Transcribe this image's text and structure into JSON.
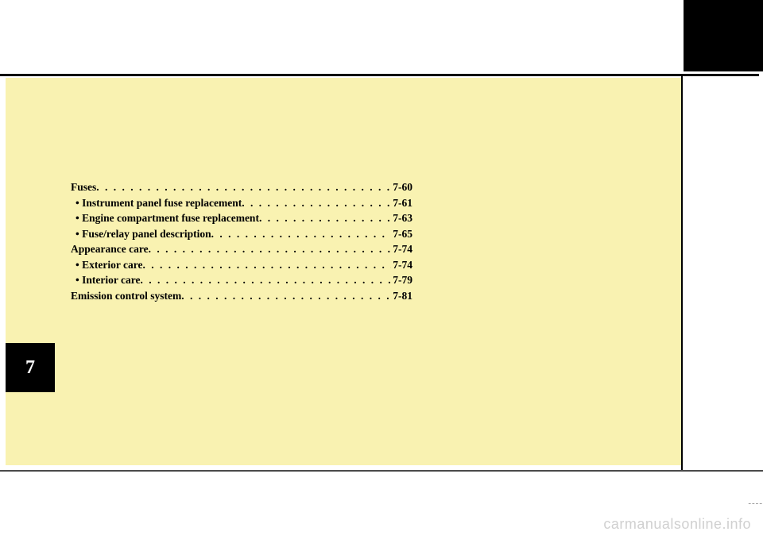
{
  "layout": {
    "page_bg": "#ffffff",
    "panel_bg": "#f9f2b1",
    "tab_bg": "#000000",
    "tab_color": "#ffffff",
    "line_color": "#000000",
    "watermark_color": "#d0d0d0"
  },
  "chapter_tab": "7",
  "toc": {
    "entries": [
      {
        "level": "main",
        "label": "Fuses",
        "page": "7-60"
      },
      {
        "level": "sub",
        "label": "• Instrument panel fuse replacement",
        "page": "7-61"
      },
      {
        "level": "sub",
        "label": "• Engine compartment fuse replacement",
        "page": "7-63"
      },
      {
        "level": "sub",
        "label": "• Fuse/relay panel description",
        "page": "7-65"
      },
      {
        "level": "main",
        "label": "Appearance care",
        "page": "7-74"
      },
      {
        "level": "sub",
        "label": "• Exterior care",
        "page": "7-74"
      },
      {
        "level": "sub",
        "label": "• Interior care",
        "page": "7-79"
      },
      {
        "level": "main",
        "label": "Emission control system",
        "page": "7-81"
      }
    ]
  },
  "watermark": "carmanualsonline.info",
  "dashes": "----"
}
